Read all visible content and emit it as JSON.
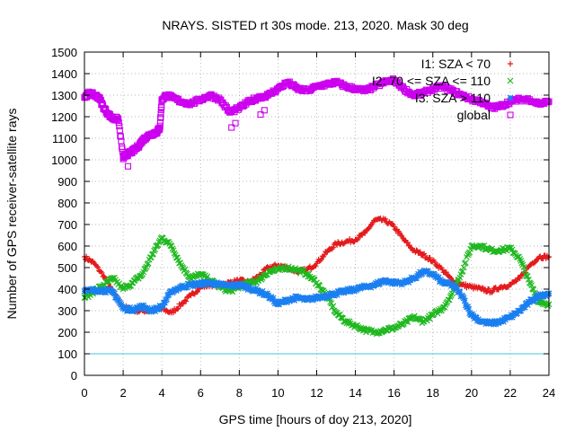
{
  "chart_data": {
    "type": "scatter",
    "title": "NRAYS. SISTED rt 30s mode. 213, 2020. Mask 30 deg",
    "xlabel": "GPS time [hours of doy 213, 2020]",
    "ylabel": "Number of GPS receiver-satellite rays",
    "xlim": [
      0,
      24
    ],
    "ylim": [
      0,
      1500
    ],
    "xticks": [
      "0",
      "2",
      "4",
      "6",
      "8",
      "10",
      "12",
      "14",
      "16",
      "18",
      "20",
      "22",
      "24"
    ],
    "yticks": [
      "0",
      "100",
      "200",
      "300",
      "400",
      "500",
      "600",
      "700",
      "800",
      "900",
      "1000",
      "1100",
      "1200",
      "1300",
      "1400",
      "1500"
    ],
    "grid": true,
    "legend_position": "top-right",
    "reference_line": {
      "y": 100,
      "color": "#40c8d8"
    },
    "series": [
      {
        "name": "I1: SZA < 70",
        "marker": "+",
        "color": "#e41a1c",
        "x": [
          0,
          0.5,
          1,
          1.5,
          2,
          2.5,
          3,
          3.5,
          4,
          4.5,
          5,
          5.5,
          6,
          6.5,
          7,
          7.5,
          8,
          8.5,
          9,
          9.5,
          10,
          10.5,
          11,
          11.5,
          12,
          12.5,
          13,
          13.5,
          14,
          14.5,
          15,
          15.5,
          16,
          16.5,
          17,
          17.5,
          18,
          18.5,
          19,
          19.5,
          20,
          20.5,
          21,
          21.5,
          22,
          22.5,
          23,
          23.5,
          24
        ],
        "y": [
          550,
          520,
          460,
          380,
          320,
          300,
          300,
          300,
          310,
          290,
          330,
          370,
          410,
          420,
          420,
          430,
          440,
          430,
          460,
          500,
          510,
          500,
          480,
          490,
          520,
          570,
          610,
          620,
          630,
          660,
          720,
          720,
          690,
          630,
          580,
          560,
          530,
          490,
          440,
          420,
          410,
          400,
          390,
          410,
          420,
          450,
          510,
          550,
          550
        ]
      },
      {
        "name": "I2: 70 <= SZA <= 110",
        "marker": "x",
        "color": "#1fb81f",
        "x": [
          0,
          0.5,
          1,
          1.5,
          2,
          2.5,
          3,
          3.5,
          4,
          4.5,
          5,
          5.5,
          6,
          6.5,
          7,
          7.5,
          8,
          8.5,
          9,
          9.5,
          10,
          10.5,
          11,
          11.5,
          12,
          12.5,
          13,
          13.5,
          14,
          14.5,
          15,
          15.5,
          16,
          16.5,
          17,
          17.5,
          18,
          18.5,
          19,
          19.5,
          20,
          20.5,
          21,
          21.5,
          22,
          22.5,
          23,
          23.5,
          24
        ],
        "y": [
          360,
          390,
          420,
          450,
          400,
          430,
          470,
          560,
          640,
          600,
          510,
          450,
          470,
          440,
          410,
          390,
          410,
          430,
          440,
          480,
          490,
          500,
          490,
          470,
          430,
          370,
          290,
          250,
          230,
          210,
          200,
          210,
          220,
          240,
          270,
          250,
          280,
          310,
          380,
          480,
          600,
          600,
          580,
          580,
          590,
          540,
          430,
          340,
          330
        ]
      },
      {
        "name": "I3: SZA > 110",
        "marker": "*",
        "color": "#1a7ff0",
        "x": [
          0,
          0.5,
          1,
          1.5,
          2,
          2.5,
          3,
          3.5,
          4,
          4.5,
          5,
          5.5,
          6,
          6.5,
          7,
          7.5,
          8,
          8.5,
          9,
          9.5,
          10,
          10.5,
          11,
          11.5,
          12,
          12.5,
          13,
          13.5,
          14,
          14.5,
          15,
          15.5,
          16,
          16.5,
          17,
          17.5,
          18,
          18.5,
          19,
          19.5,
          20,
          20.5,
          21,
          21.5,
          22,
          22.5,
          23,
          23.5,
          24
        ],
        "y": [
          390,
          395,
          395,
          385,
          310,
          305,
          320,
          300,
          320,
          390,
          410,
          420,
          425,
          430,
          420,
          415,
          420,
          405,
          390,
          370,
          330,
          350,
          360,
          350,
          360,
          370,
          380,
          390,
          400,
          410,
          420,
          440,
          430,
          430,
          450,
          480,
          470,
          430,
          420,
          370,
          280,
          250,
          240,
          250,
          270,
          300,
          340,
          370,
          380
        ]
      },
      {
        "name": "global",
        "marker": "square",
        "color": "#cc00ee",
        "x": [
          0,
          0.25,
          0.5,
          0.75,
          1,
          1.25,
          1.5,
          1.75,
          2,
          2.1,
          2.3,
          2.5,
          2.75,
          3,
          3.25,
          3.5,
          3.75,
          3.9,
          4,
          4.25,
          4.5,
          5,
          5.5,
          6,
          6.5,
          7,
          7.5,
          8,
          8.5,
          9,
          9.5,
          10,
          10.5,
          11,
          11.5,
          12,
          12.5,
          13,
          13.5,
          14,
          14.5,
          15,
          15.5,
          16,
          16.5,
          17,
          17.5,
          18,
          18.5,
          19,
          19.5,
          20,
          20.5,
          21,
          21.5,
          22,
          22.5,
          23,
          23.5,
          24
        ],
        "y": [
          1290,
          1310,
          1300,
          1290,
          1240,
          1210,
          1190,
          1190,
          1010,
          1020,
          1030,
          1040,
          1060,
          1090,
          1110,
          1120,
          1130,
          1150,
          1280,
          1300,
          1290,
          1270,
          1260,
          1280,
          1300,
          1280,
          1220,
          1240,
          1270,
          1290,
          1300,
          1330,
          1360,
          1330,
          1320,
          1340,
          1350,
          1360,
          1340,
          1330,
          1320,
          1340,
          1360,
          1370,
          1330,
          1300,
          1310,
          1330,
          1340,
          1320,
          1300,
          1280,
          1270,
          1240,
          1250,
          1270,
          1280,
          1280,
          1260,
          1270
        ]
      }
    ],
    "outliers": {
      "x": [
        2.25,
        7.6,
        7.8,
        9.1,
        9.3
      ],
      "y": [
        970,
        1150,
        1170,
        1210,
        1230
      ]
    }
  }
}
